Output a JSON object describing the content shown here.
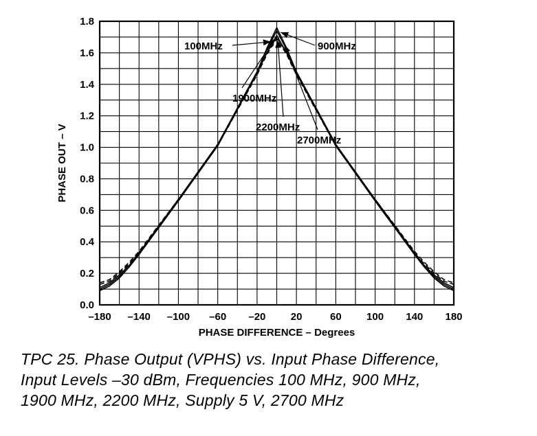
{
  "chart_data": {
    "type": "line",
    "title": "",
    "xlabel": "PHASE DIFFERENCE – Degrees",
    "ylabel": "PHASE OUT – V",
    "xlim": [
      -180,
      180
    ],
    "ylim": [
      0,
      1.8
    ],
    "grid": true,
    "x_ticks": [
      -180,
      -140,
      -100,
      -60,
      -20,
      20,
      60,
      100,
      140,
      180
    ],
    "x_tick_labels": [
      "–180",
      "–140",
      "–100",
      "–60",
      "–20",
      "20",
      "60",
      "100",
      "140",
      "180"
    ],
    "y_ticks": [
      0,
      0.2,
      0.4,
      0.6,
      0.8,
      1.0,
      1.2,
      1.4,
      1.6,
      1.8
    ],
    "y_tick_labels": [
      "0.0",
      "0.2",
      "0.4",
      "0.6",
      "0.8",
      "1.0",
      "1.2",
      "1.4",
      "1.6",
      "1.8"
    ],
    "series": [
      {
        "name": "100MHz",
        "style": "solid",
        "x": [
          -180,
          -170,
          -160,
          -150,
          -140,
          -100,
          -60,
          -20,
          -10,
          0,
          10,
          20,
          60,
          100,
          140,
          150,
          160,
          170,
          180
        ],
        "y": [
          0.09,
          0.12,
          0.17,
          0.24,
          0.32,
          0.66,
          1.01,
          1.48,
          1.63,
          1.76,
          1.63,
          1.48,
          1.01,
          0.66,
          0.32,
          0.24,
          0.17,
          0.12,
          0.09
        ]
      },
      {
        "name": "900MHz",
        "style": "solid",
        "x": [
          -180,
          -170,
          -160,
          -150,
          -140,
          -100,
          -60,
          -20,
          -10,
          0,
          10,
          20,
          60,
          100,
          140,
          150,
          160,
          170,
          180
        ],
        "y": [
          0.11,
          0.14,
          0.19,
          0.25,
          0.33,
          0.67,
          1.02,
          1.48,
          1.62,
          1.74,
          1.62,
          1.48,
          1.02,
          0.67,
          0.33,
          0.25,
          0.19,
          0.14,
          0.11
        ]
      },
      {
        "name": "1900MHz",
        "style": "solid",
        "x": [
          -180,
          -170,
          -160,
          -150,
          -140,
          -100,
          -60,
          -20,
          -10,
          0,
          10,
          20,
          60,
          100,
          140,
          150,
          160,
          170,
          180
        ],
        "y": [
          0.1,
          0.13,
          0.18,
          0.24,
          0.32,
          0.66,
          1.01,
          1.47,
          1.6,
          1.71,
          1.6,
          1.47,
          1.01,
          0.66,
          0.32,
          0.24,
          0.18,
          0.13,
          0.1
        ]
      },
      {
        "name": "2200MHz",
        "style": "dashed",
        "x": [
          -180,
          -170,
          -160,
          -150,
          -140,
          -100,
          -60,
          -20,
          -10,
          0,
          10,
          20,
          60,
          100,
          140,
          150,
          160,
          170,
          180
        ],
        "y": [
          0.13,
          0.15,
          0.2,
          0.26,
          0.33,
          0.67,
          1.01,
          1.47,
          1.6,
          1.7,
          1.6,
          1.47,
          1.01,
          0.67,
          0.33,
          0.26,
          0.2,
          0.15,
          0.13
        ]
      },
      {
        "name": "2700MHz",
        "style": "dashed",
        "x": [
          -180,
          -170,
          -160,
          -150,
          -140,
          -100,
          -60,
          -20,
          -10,
          0,
          10,
          20,
          60,
          100,
          140,
          150,
          160,
          170,
          180
        ],
        "y": [
          0.14,
          0.16,
          0.21,
          0.27,
          0.34,
          0.67,
          1.01,
          1.46,
          1.59,
          1.69,
          1.59,
          1.46,
          1.01,
          0.67,
          0.34,
          0.27,
          0.21,
          0.16,
          0.14
        ]
      }
    ],
    "annotations": [
      {
        "text": "100MHz",
        "target": [
          -6,
          1.67
        ]
      },
      {
        "text": "900MHz",
        "target": [
          4,
          1.73
        ]
      },
      {
        "text": "1900MHz",
        "target": [
          -2,
          1.69
        ]
      },
      {
        "text": "2200MHz",
        "target": [
          1,
          1.68
        ]
      },
      {
        "text": "2700MHz",
        "target": [
          8,
          1.65
        ]
      }
    ]
  },
  "caption": {
    "lines": [
      "TPC 25.  Phase Output (VPHS) vs. Input Phase Difference,",
      "Input Levels –30 dBm, Frequencies 100 MHz, 900 MHz,",
      "1900 MHz, 2200 MHz, Supply 5 V, 2700 MHz"
    ]
  }
}
